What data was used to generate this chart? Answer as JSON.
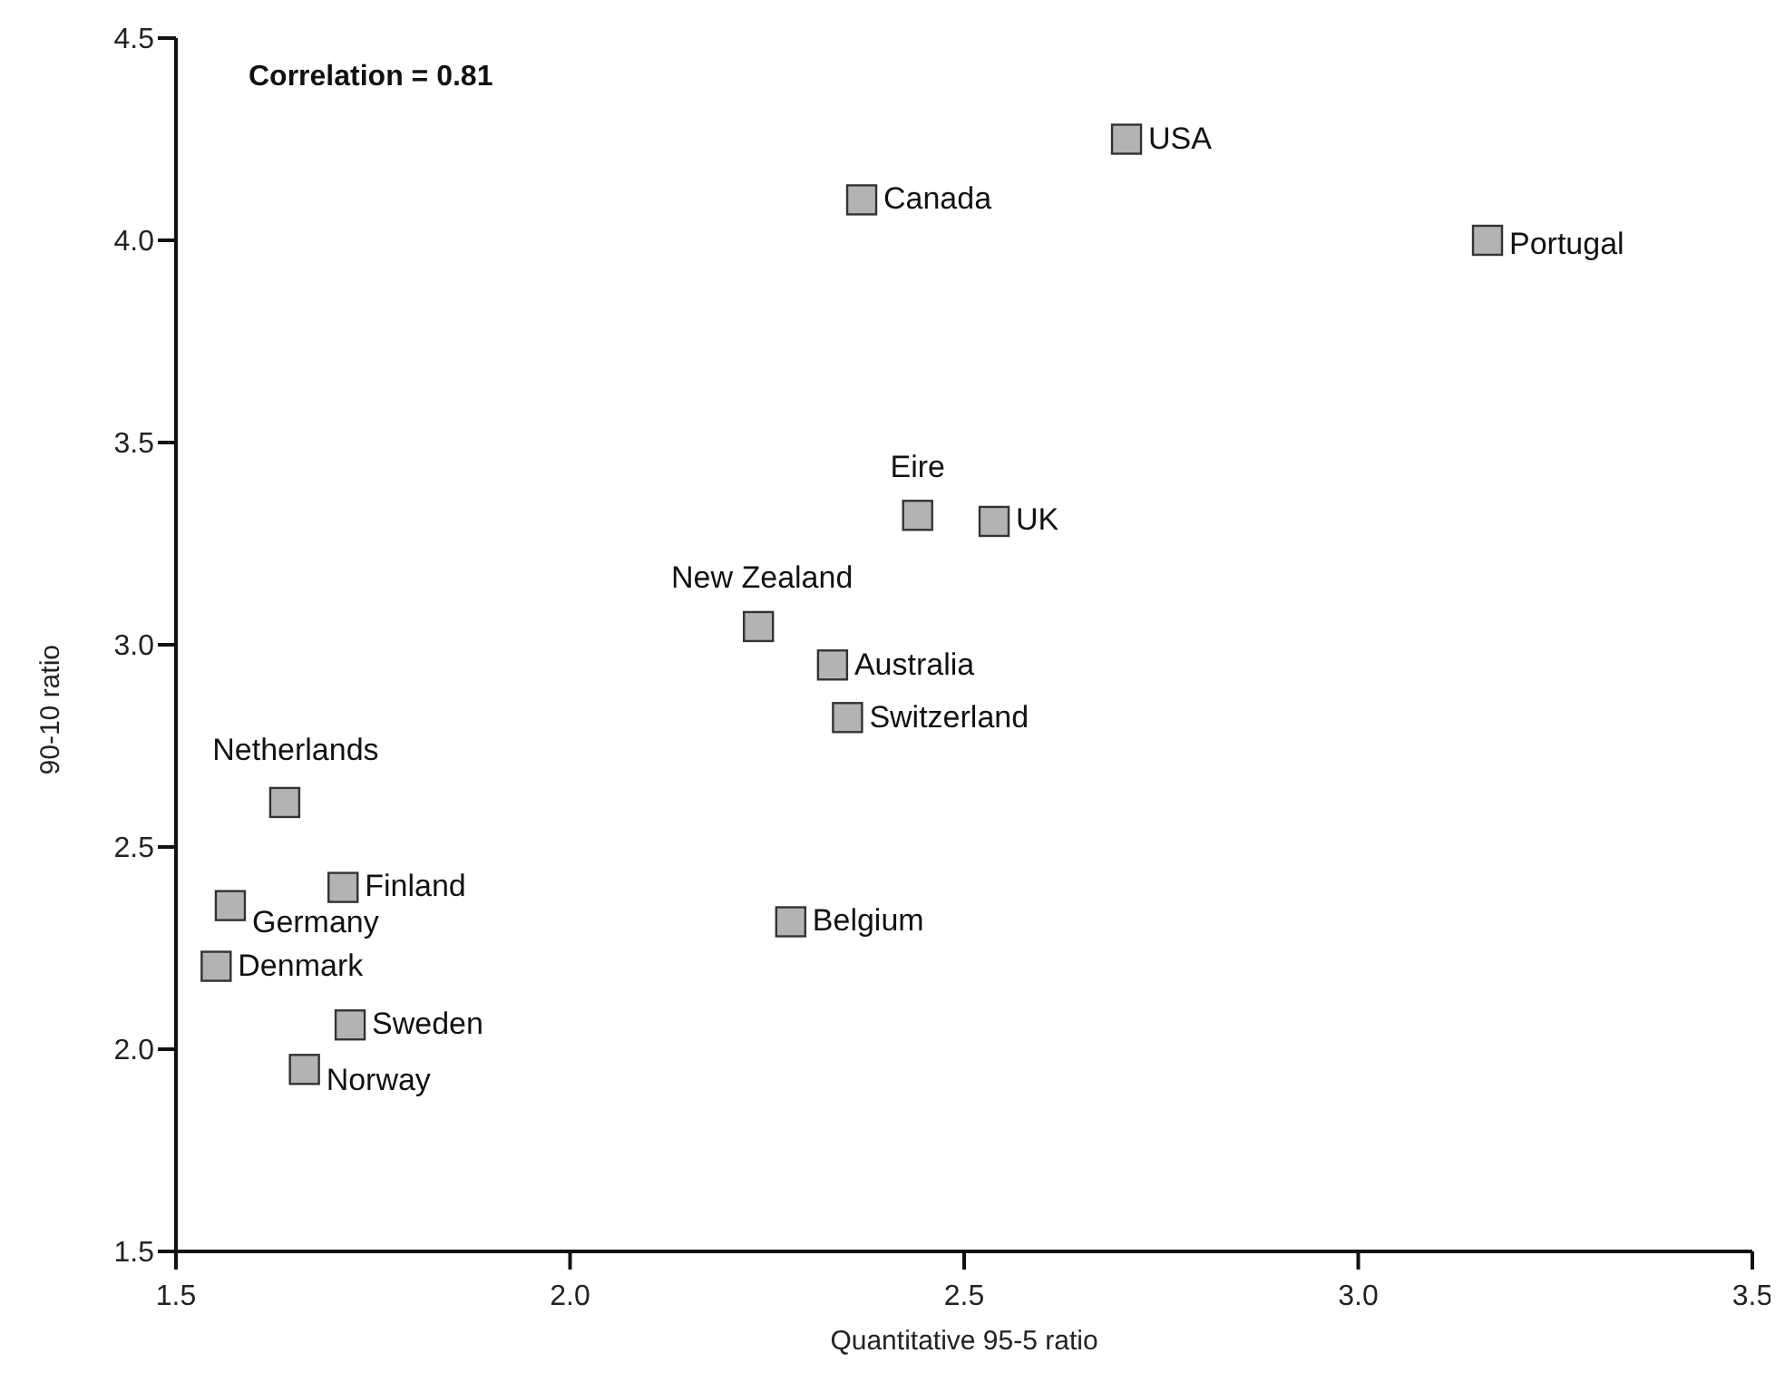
{
  "chart_data": {
    "type": "scatter",
    "xlabel": "Quantitative 95-5 ratio",
    "ylabel": "90-10 ratio",
    "x": [
      2.706,
      2.37,
      3.164,
      2.441,
      2.538,
      2.239,
      2.333,
      2.352,
      1.638,
      1.712,
      1.569,
      1.551,
      2.28,
      1.721,
      1.663
    ],
    "series": [
      {
        "color": "#b3b3b3",
        "values": [
          4.25,
          4.1,
          4.0,
          3.32,
          3.305,
          3.045,
          2.95,
          2.82,
          2.61,
          2.4,
          2.355,
          2.205,
          2.315,
          2.06,
          1.95
        ]
      }
    ],
    "xlim": [
      1.5,
      3.5
    ],
    "xticks": [
      {
        "value": 1.5,
        "label": "1.5"
      },
      {
        "value": 2,
        "label": "2.0"
      },
      {
        "value": 2.5,
        "label": "2.5"
      },
      {
        "value": 3,
        "label": "3.0"
      },
      {
        "value": 3.5,
        "label": "3.5"
      }
    ],
    "ylim": [
      1.5,
      4.5
    ],
    "yticks": [
      {
        "value": 1.5,
        "label": "1.5"
      },
      {
        "value": 2,
        "label": "2.0"
      },
      {
        "value": 2.5,
        "label": "2.5"
      },
      {
        "value": 3,
        "label": "3.0"
      },
      {
        "value": 3.5,
        "label": "3.5"
      },
      {
        "value": 4,
        "label": "4.0"
      },
      {
        "value": 4.5,
        "label": "4.5"
      }
    ],
    "grid": false,
    "legend": false,
    "marker": "square",
    "annotations": [
      "Correlation = 0.81",
      {
        "text": "USA",
        "x": 2.706,
        "y": 4.25
      },
      {
        "text": "Canada",
        "x": 2.37,
        "y": 4.1
      },
      {
        "text": "Portugal",
        "x": 3.164,
        "y": 4.0
      },
      {
        "text": "Eire",
        "x": 2.441,
        "y": 3.32
      },
      {
        "text": "UK",
        "x": 2.538,
        "y": 3.305
      },
      {
        "text": "New Zealand",
        "x": 2.239,
        "y": 3.045
      },
      {
        "text": "Australia",
        "x": 2.333,
        "y": 2.95
      },
      {
        "text": "Switzerland",
        "x": 2.352,
        "y": 2.82
      },
      {
        "text": "Netherlands",
        "x": 1.638,
        "y": 2.61
      },
      {
        "text": "Finland",
        "x": 1.712,
        "y": 2.4
      },
      {
        "text": "Germany",
        "x": 1.569,
        "y": 2.355
      },
      {
        "text": "Denmark",
        "x": 1.551,
        "y": 2.205
      },
      {
        "text": "Belgium",
        "x": 2.28,
        "y": 2.315
      },
      {
        "text": "Sweden",
        "x": 1.721,
        "y": 2.06
      },
      {
        "text": "Norway",
        "x": 1.663,
        "y": 1.95
      }
    ]
  }
}
